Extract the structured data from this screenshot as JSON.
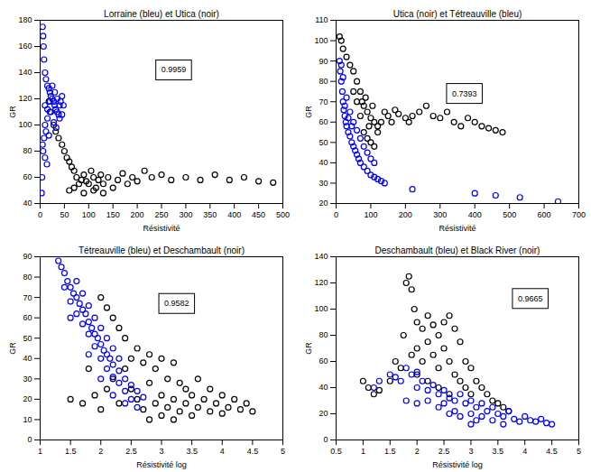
{
  "chart_data": [
    {
      "type": "scatter",
      "title": "Lorraine (bleu) et Utica (noir)",
      "x_label": "Résistivité",
      "y_label": "GR",
      "xlim": [
        0,
        500
      ],
      "xticks": [
        0,
        50,
        100,
        150,
        200,
        250,
        300,
        350,
        400,
        450,
        500
      ],
      "ylim": [
        40,
        180
      ],
      "yticks": [
        40,
        60,
        80,
        100,
        120,
        140,
        160,
        180
      ],
      "annotations": [
        {
          "text": "0.9959",
          "x": 275,
          "y": 142
        }
      ],
      "series": [
        {
          "color": "#000000",
          "marker": "circle",
          "x": [
            18,
            22,
            28,
            32,
            38,
            45,
            50,
            55,
            60,
            65,
            70,
            75,
            80,
            85,
            90,
            95,
            100,
            105,
            110,
            115,
            120,
            125,
            130,
            140,
            150,
            160,
            170,
            180,
            190,
            200,
            215,
            230,
            250,
            270,
            300,
            330,
            360,
            390,
            420,
            450,
            480,
            60,
            70,
            90,
            110,
            130
          ],
          "y": [
            118,
            110,
            100,
            95,
            90,
            85,
            80,
            75,
            72,
            68,
            65,
            60,
            55,
            58,
            62,
            57,
            55,
            65,
            60,
            52,
            58,
            62,
            55,
            60,
            52,
            58,
            63,
            55,
            60,
            57,
            65,
            60,
            62,
            58,
            60,
            58,
            62,
            58,
            60,
            57,
            56,
            50,
            52,
            48,
            50,
            48
          ]
        },
        {
          "color": "#0000ff",
          "marker": "circle",
          "x": [
            5,
            6,
            7,
            8,
            10,
            12,
            15,
            18,
            20,
            22,
            25,
            28,
            30,
            32,
            35,
            38,
            40,
            42,
            45,
            48,
            20,
            15,
            10,
            12,
            8,
            5,
            10,
            25,
            30,
            35,
            40,
            45,
            15,
            20,
            28,
            33,
            18,
            6,
            10,
            14,
            4,
            3
          ],
          "y": [
            175,
            168,
            160,
            150,
            140,
            135,
            130,
            128,
            125,
            122,
            120,
            118,
            115,
            112,
            110,
            108,
            105,
            118,
            122,
            115,
            110,
            105,
            100,
            95,
            90,
            85,
            115,
            130,
            125,
            120,
            115,
            108,
            112,
            118,
            102,
            98,
            92,
            80,
            75,
            70,
            60,
            48
          ]
        }
      ]
    },
    {
      "type": "scatter",
      "title": "Utica (noir) et Tétreauville (bleu)",
      "x_label": "Résistivité",
      "y_label": "GR",
      "xlim": [
        0,
        700
      ],
      "xticks": [
        0,
        100,
        200,
        300,
        400,
        500,
        600,
        700
      ],
      "ylim": [
        20,
        110
      ],
      "yticks": [
        20,
        30,
        40,
        50,
        60,
        70,
        80,
        90,
        100,
        110
      ],
      "annotations": [
        {
          "text": "0.7393",
          "x": 370,
          "y": 74
        }
      ],
      "series": [
        {
          "color": "#000000",
          "marker": "circle",
          "x": [
            10,
            15,
            20,
            30,
            40,
            50,
            60,
            70,
            75,
            80,
            90,
            100,
            110,
            120,
            80,
            90,
            100,
            110,
            120,
            130,
            140,
            150,
            160,
            170,
            180,
            200,
            210,
            220,
            240,
            260,
            280,
            300,
            320,
            340,
            360,
            380,
            400,
            420,
            440,
            460,
            480,
            70,
            85,
            95,
            105,
            60,
            50
          ],
          "y": [
            102,
            100,
            96,
            92,
            88,
            85,
            80,
            75,
            70,
            68,
            65,
            62,
            60,
            58,
            55,
            52,
            50,
            48,
            55,
            60,
            65,
            63,
            60,
            66,
            64,
            62,
            60,
            63,
            65,
            68,
            63,
            62,
            65,
            60,
            58,
            62,
            60,
            58,
            57,
            56,
            55,
            63,
            72,
            58,
            68,
            70,
            75
          ]
        },
        {
          "color": "#0000ff",
          "marker": "circle",
          "x": [
            10,
            12,
            15,
            18,
            20,
            22,
            25,
            28,
            30,
            35,
            40,
            45,
            50,
            55,
            60,
            65,
            70,
            80,
            90,
            100,
            110,
            120,
            130,
            140,
            15,
            20,
            30,
            40,
            50,
            60,
            70,
            80,
            90,
            100,
            110,
            25,
            35,
            45,
            220,
            400,
            460,
            530,
            640
          ],
          "y": [
            90,
            85,
            80,
            75,
            70,
            66,
            63,
            60,
            58,
            55,
            53,
            50,
            48,
            46,
            44,
            42,
            40,
            38,
            36,
            34,
            33,
            32,
            31,
            30,
            88,
            82,
            72,
            65,
            60,
            56,
            52,
            48,
            45,
            42,
            40,
            68,
            62,
            58,
            27,
            25,
            24,
            23,
            21
          ]
        }
      ]
    },
    {
      "type": "scatter",
      "title": "Tétreauville (bleu) et Deschambault (noir)",
      "x_label": "Résistivité log",
      "y_label": "GR",
      "xlim": [
        1,
        5
      ],
      "xticks": [
        1,
        1.5,
        2,
        2.5,
        3,
        3.5,
        4,
        4.5,
        5
      ],
      "ylim": [
        0,
        90
      ],
      "yticks": [
        0,
        10,
        20,
        30,
        40,
        50,
        60,
        70,
        80,
        90
      ],
      "annotations": [
        {
          "text": "0.9582",
          "x": 3.25,
          "y": 67
        }
      ],
      "series": [
        {
          "color": "#000000",
          "marker": "circle",
          "x": [
            1.5,
            1.7,
            1.9,
            2.0,
            2.1,
            2.2,
            2.3,
            2.4,
            2.5,
            2.5,
            2.6,
            2.6,
            2.7,
            2.7,
            2.8,
            2.8,
            2.9,
            2.9,
            3.0,
            3.0,
            3.0,
            3.1,
            3.1,
            3.2,
            3.2,
            3.3,
            3.3,
            3.4,
            3.4,
            3.5,
            3.5,
            3.6,
            3.6,
            3.7,
            3.8,
            3.8,
            3.9,
            4.0,
            4.0,
            4.1,
            4.2,
            4.3,
            4.4,
            4.5,
            2.0,
            2.1,
            2.2,
            2.3,
            2.4,
            1.8,
            2.8,
            3.2
          ],
          "y": [
            20,
            18,
            22,
            15,
            25,
            30,
            18,
            35,
            40,
            25,
            45,
            20,
            38,
            15,
            42,
            28,
            35,
            18,
            40,
            22,
            12,
            30,
            16,
            38,
            20,
            28,
            14,
            25,
            18,
            22,
            12,
            30,
            16,
            20,
            25,
            14,
            18,
            22,
            13,
            16,
            20,
            15,
            18,
            14,
            70,
            65,
            60,
            55,
            50,
            35,
            10,
            10
          ]
        },
        {
          "color": "#0000ff",
          "marker": "circle",
          "x": [
            1.3,
            1.35,
            1.4,
            1.45,
            1.5,
            1.55,
            1.6,
            1.65,
            1.7,
            1.75,
            1.8,
            1.85,
            1.9,
            1.95,
            2.0,
            2.05,
            2.1,
            2.15,
            2.2,
            2.3,
            2.4,
            2.5,
            2.6,
            2.7,
            1.4,
            1.5,
            1.6,
            1.7,
            1.8,
            1.9,
            2.0,
            2.1,
            2.2,
            2.3,
            2.4,
            2.5,
            1.6,
            1.7,
            1.8,
            1.9,
            2.0,
            2.1,
            2.2,
            2.3,
            1.5,
            1.8,
            2.0,
            2.2,
            2.4,
            2.6
          ],
          "y": [
            88,
            85,
            82,
            78,
            75,
            72,
            70,
            67,
            64,
            62,
            58,
            55,
            52,
            50,
            47,
            44,
            42,
            40,
            37,
            34,
            30,
            27,
            24,
            21,
            75,
            68,
            62,
            57,
            52,
            46,
            40,
            35,
            31,
            28,
            24,
            20,
            78,
            72,
            66,
            60,
            55,
            50,
            45,
            40,
            60,
            42,
            30,
            22,
            18,
            16
          ]
        }
      ]
    },
    {
      "type": "scatter",
      "title": "Deschambault (bleu) et Black River (noir)",
      "x_label": "Résistivité log",
      "y_label": "GR",
      "xlim": [
        0.5,
        5
      ],
      "xticks": [
        0.5,
        1,
        1.5,
        2,
        2.5,
        3,
        3.5,
        4,
        4.5,
        5
      ],
      "ylim": [
        0,
        140
      ],
      "yticks": [
        0,
        20,
        40,
        60,
        80,
        100,
        120,
        140
      ],
      "annotations": [
        {
          "text": "0.9665",
          "x": 4.1,
          "y": 108
        }
      ],
      "series": [
        {
          "color": "#000000",
          "marker": "circle",
          "x": [
            1.0,
            1.1,
            1.2,
            1.3,
            1.5,
            1.6,
            1.7,
            1.75,
            1.8,
            1.85,
            1.9,
            1.95,
            2.0,
            2.0,
            2.1,
            2.1,
            2.2,
            2.2,
            2.3,
            2.3,
            2.4,
            2.4,
            2.5,
            2.5,
            2.6,
            2.6,
            2.7,
            2.7,
            2.8,
            2.8,
            2.9,
            2.9,
            3.0,
            3.0,
            3.1,
            3.2,
            3.3,
            3.4,
            3.5,
            3.6,
            3.7,
            1.9,
            2.0,
            2.2,
            2.4,
            2.6
          ],
          "y": [
            45,
            40,
            35,
            38,
            45,
            60,
            55,
            80,
            120,
            125,
            115,
            100,
            90,
            70,
            85,
            60,
            95,
            75,
            88,
            65,
            80,
            55,
            90,
            70,
            95,
            60,
            85,
            50,
            75,
            45,
            60,
            40,
            55,
            35,
            45,
            40,
            35,
            30,
            28,
            25,
            22,
            65,
            50,
            45,
            40,
            35
          ]
        },
        {
          "color": "#0000ff",
          "marker": "circle",
          "x": [
            1.2,
            1.3,
            1.5,
            1.6,
            1.7,
            1.8,
            1.9,
            2.0,
            2.0,
            2.1,
            2.2,
            2.2,
            2.3,
            2.4,
            2.4,
            2.5,
            2.5,
            2.6,
            2.6,
            2.7,
            2.7,
            2.8,
            2.8,
            2.9,
            3.0,
            3.0,
            3.1,
            3.1,
            3.2,
            3.2,
            3.3,
            3.4,
            3.4,
            3.5,
            3.6,
            3.6,
            3.7,
            3.8,
            3.9,
            4.0,
            4.1,
            4.2,
            4.3,
            4.4,
            4.5,
            1.8,
            2.0,
            3.0
          ],
          "y": [
            40,
            45,
            50,
            48,
            45,
            55,
            50,
            52,
            40,
            45,
            38,
            30,
            42,
            35,
            25,
            38,
            28,
            32,
            20,
            30,
            22,
            35,
            18,
            28,
            30,
            20,
            25,
            15,
            28,
            18,
            22,
            25,
            15,
            20,
            18,
            12,
            22,
            16,
            14,
            18,
            15,
            14,
            16,
            13,
            12,
            30,
            28,
            12
          ]
        }
      ]
    }
  ]
}
